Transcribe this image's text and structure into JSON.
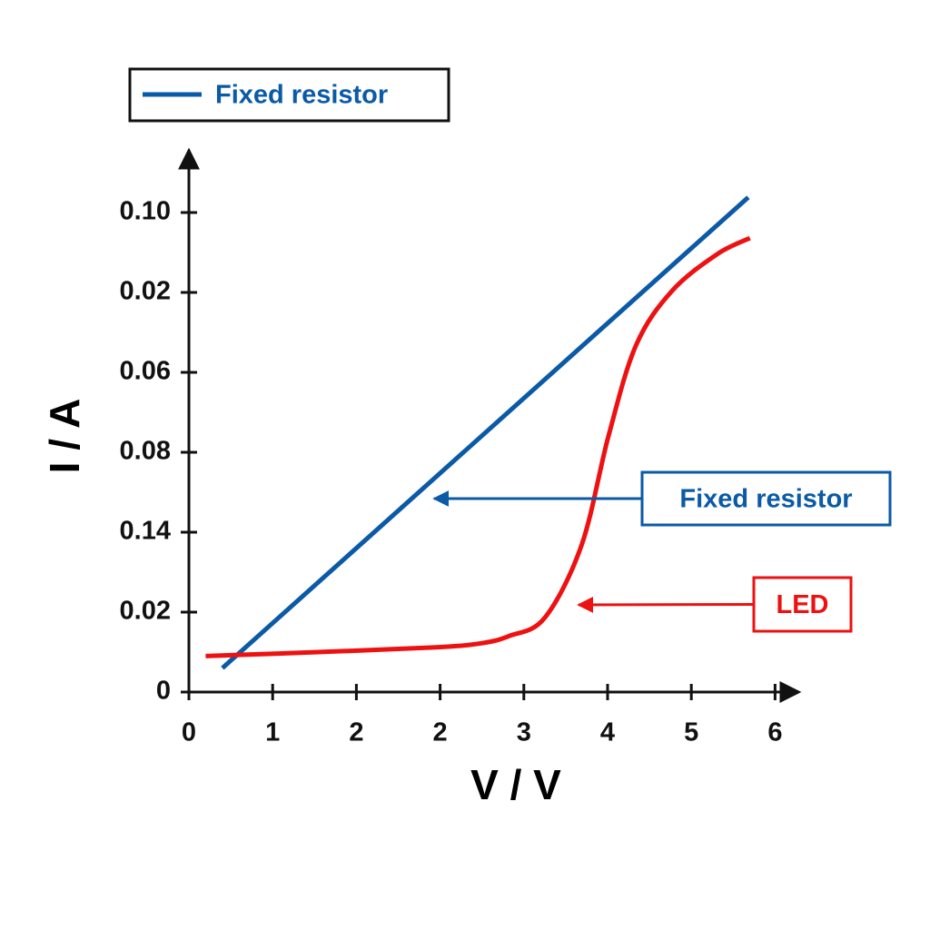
{
  "chart_data": {
    "type": "line",
    "x_label": "V / V",
    "y_label": "I / A",
    "xlim": [
      0,
      7.3
    ],
    "ylim": [
      0,
      6.78
    ],
    "xticks": [
      0,
      1,
      2,
      {
        "value": 3,
        "label": "2"
      },
      {
        "value": 4,
        "label": "3"
      },
      {
        "value": 5,
        "label": "4"
      },
      {
        "value": 6,
        "label": "5"
      },
      {
        "value": 7,
        "label": "6"
      }
    ],
    "yticks": [
      0,
      {
        "value": 1,
        "label": "0.02"
      },
      {
        "value": 2,
        "label": "0.14"
      },
      {
        "value": 3,
        "label": "0.08"
      },
      {
        "value": 4,
        "label": "0.06"
      },
      {
        "value": 5,
        "label": "0.02"
      },
      {
        "value": 6,
        "label": "0.10"
      }
    ],
    "grid": false,
    "legend": "top-left",
    "series": [
      {
        "name": "Fixed resistor",
        "color": "#0b5aa6",
        "x": [
          0.4,
          6.68
        ],
        "values": [
          0.3,
          6.19
        ]
      },
      {
        "name": "LED",
        "color": "#ee1111",
        "in_legend": false,
        "x": [
          0.2,
          1.54,
          2.95,
          3.49,
          3.82,
          4.25,
          4.69,
          5.01,
          5.34,
          5.77,
          6.31,
          6.7
        ],
        "values": [
          0.45,
          0.5,
          0.56,
          0.61,
          0.7,
          0.93,
          1.84,
          3.2,
          4.34,
          5.02,
          5.48,
          5.68
        ]
      }
    ]
  }
}
